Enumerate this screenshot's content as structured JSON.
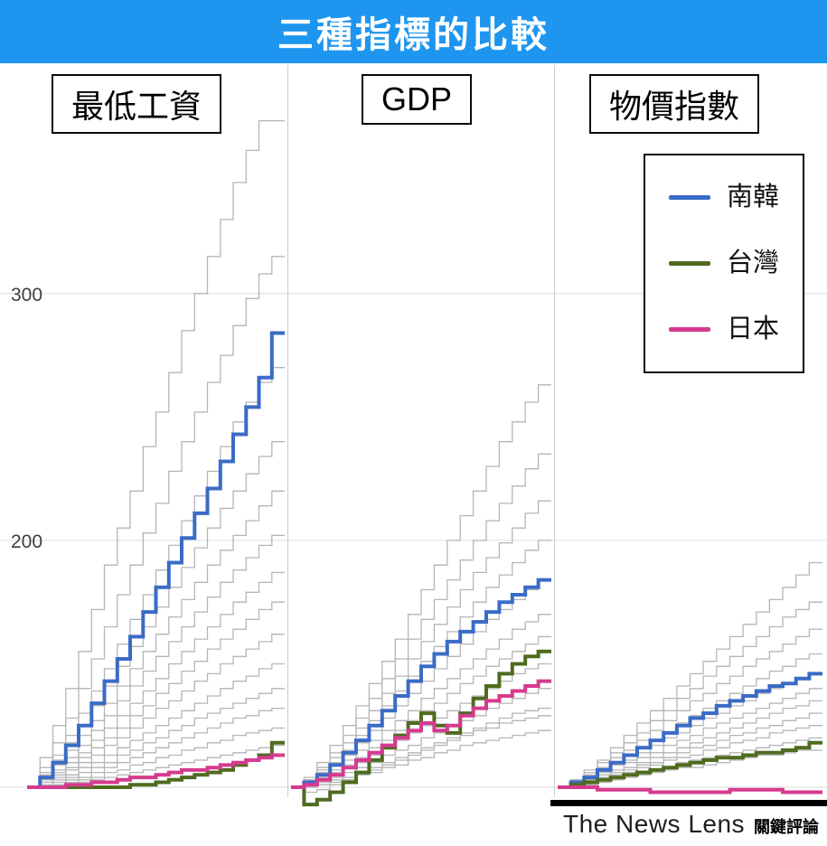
{
  "banner": {
    "title": "三種指標的比較",
    "bg_color": "#1e96ef",
    "text_color": "#ffffff"
  },
  "legend": {
    "items": [
      {
        "label": "南韓",
        "color": "#3a6bc6"
      },
      {
        "label": "台灣",
        "color": "#4e6b1f"
      },
      {
        "label": "日本",
        "color": "#d63a8f"
      }
    ]
  },
  "y_axis": {
    "ticks": [
      {
        "label": "300",
        "value": 300
      },
      {
        "label": "200",
        "value": 200
      }
    ],
    "baseline_value": 100
  },
  "footer": {
    "brand_en": "The News Lens",
    "brand_zh": "關鍵評論"
  },
  "chart_data": [
    {
      "type": "line",
      "step": true,
      "title": "最低工資",
      "ylim": [
        95,
        390
      ],
      "grid": true,
      "x_axis_labels": [],
      "background_color": "#b5b5b5",
      "series": [
        {
          "name": "南韓",
          "color": "#3a6bc6",
          "values": [
            100,
            104,
            110,
            117,
            125,
            134,
            143,
            152,
            161,
            171,
            181,
            191,
            201,
            211,
            221,
            232,
            243,
            254,
            266,
            284
          ]
        },
        {
          "name": "台灣",
          "color": "#4e6b1f",
          "values": [
            100,
            100,
            100,
            100,
            100,
            100,
            100,
            100,
            101,
            101,
            102,
            103,
            104,
            105,
            106,
            107,
            109,
            111,
            113,
            118
          ]
        },
        {
          "name": "日本",
          "color": "#d63a8f",
          "values": [
            100,
            100,
            100,
            101,
            101,
            102,
            102,
            103,
            104,
            104,
            105,
            106,
            107,
            107,
            108,
            109,
            110,
            111,
            112,
            113
          ]
        }
      ],
      "background_series": [
        [
          100,
          112,
          125,
          140,
          155,
          172,
          190,
          205,
          220,
          238,
          252,
          268,
          285,
          300,
          315,
          330,
          345,
          358,
          370,
          370
        ],
        [
          100,
          108,
          118,
          128,
          140,
          152,
          165,
          178,
          190,
          203,
          215,
          228,
          240,
          252,
          264,
          275,
          287,
          298,
          308,
          315
        ],
        [
          100,
          106,
          113,
          121,
          130,
          139,
          148,
          158,
          168,
          178,
          188,
          198,
          208,
          218,
          228,
          238,
          248,
          256,
          264,
          270
        ],
        [
          100,
          105,
          111,
          118,
          125,
          133,
          141,
          149,
          157,
          165,
          173,
          181,
          189,
          197,
          205,
          213,
          220,
          227,
          234,
          240
        ],
        [
          100,
          104,
          109,
          115,
          121,
          127,
          134,
          141,
          148,
          155,
          162,
          169,
          176,
          183,
          190,
          196,
          202,
          208,
          214,
          220
        ],
        [
          100,
          103,
          107,
          112,
          117,
          123,
          129,
          135,
          141,
          147,
          153,
          159,
          165,
          171,
          177,
          183,
          188,
          193,
          198,
          202
        ],
        [
          100,
          103,
          106,
          110,
          114,
          119,
          124,
          129,
          134,
          139,
          144,
          150,
          155,
          160,
          165,
          170,
          175,
          179,
          183,
          187
        ],
        [
          100,
          102,
          105,
          108,
          112,
          116,
          120,
          124,
          129,
          133,
          138,
          142,
          147,
          151,
          156,
          160,
          164,
          168,
          172,
          175
        ],
        [
          100,
          102,
          104,
          107,
          110,
          113,
          117,
          120,
          124,
          128,
          132,
          135,
          139,
          143,
          146,
          150,
          153,
          156,
          159,
          162
        ],
        [
          100,
          101,
          103,
          105,
          108,
          110,
          113,
          116,
          119,
          122,
          125,
          128,
          131,
          134,
          137,
          140,
          143,
          145,
          148,
          150
        ],
        [
          100,
          101,
          102,
          104,
          106,
          108,
          110,
          113,
          115,
          118,
          120,
          123,
          125,
          128,
          130,
          132,
          134,
          136,
          138,
          140
        ],
        [
          100,
          100,
          101,
          103,
          104,
          106,
          108,
          110,
          112,
          114,
          116,
          118,
          120,
          122,
          124,
          126,
          128,
          129,
          131,
          132
        ],
        [
          100,
          100,
          101,
          102,
          103,
          104,
          106,
          107,
          109,
          110,
          112,
          113,
          115,
          116,
          118,
          119,
          121,
          122,
          123,
          124
        ],
        [
          100,
          100,
          100,
          101,
          102,
          103,
          104,
          105,
          106,
          107,
          108,
          109,
          110,
          111,
          112,
          113,
          114,
          115,
          116,
          117
        ]
      ]
    },
    {
      "type": "line",
      "step": true,
      "title": "GDP",
      "ylim": [
        90,
        390
      ],
      "grid": true,
      "x_axis_labels": [],
      "background_color": "#b5b5b5",
      "series": [
        {
          "name": "南韓",
          "color": "#3a6bc6",
          "values": [
            100,
            102,
            105,
            109,
            114,
            119,
            125,
            131,
            137,
            143,
            149,
            154,
            159,
            163,
            167,
            171,
            175,
            178,
            181,
            184
          ]
        },
        {
          "name": "台灣",
          "color": "#4e6b1f",
          "values": [
            100,
            93,
            95,
            98,
            102,
            106,
            111,
            116,
            121,
            126,
            130,
            125,
            122,
            130,
            136,
            141,
            146,
            150,
            153,
            155
          ]
        },
        {
          "name": "日本",
          "color": "#d63a8f",
          "values": [
            100,
            101,
            103,
            105,
            108,
            111,
            114,
            117,
            120,
            123,
            126,
            123,
            125,
            129,
            132,
            135,
            137,
            139,
            141,
            143
          ]
        }
      ],
      "background_series": [
        [
          100,
          104,
          110,
          117,
          125,
          133,
          142,
          151,
          160,
          170,
          180,
          190,
          200,
          210,
          220,
          230,
          240,
          248,
          256,
          263
        ],
        [
          100,
          103,
          108,
          114,
          121,
          128,
          136,
          144,
          152,
          160,
          168,
          176,
          184,
          192,
          200,
          208,
          215,
          222,
          229,
          235
        ],
        [
          100,
          103,
          107,
          112,
          118,
          124,
          131,
          138,
          145,
          152,
          159,
          166,
          173,
          180,
          187,
          193,
          199,
          205,
          211,
          216
        ],
        [
          100,
          102,
          106,
          110,
          115,
          121,
          127,
          133,
          139,
          145,
          151,
          157,
          163,
          169,
          175,
          181,
          186,
          191,
          196,
          200
        ],
        [
          100,
          102,
          105,
          109,
          113,
          118,
          123,
          128,
          133,
          138,
          143,
          148,
          153,
          158,
          163,
          168,
          172,
          176,
          180,
          184
        ],
        [
          100,
          102,
          104,
          107,
          111,
          115,
          119,
          123,
          127,
          131,
          136,
          140,
          144,
          148,
          152,
          156,
          160,
          164,
          167,
          170
        ],
        [
          100,
          101,
          103,
          106,
          109,
          112,
          116,
          119,
          123,
          127,
          131,
          134,
          138,
          142,
          145,
          149,
          152,
          155,
          158,
          161
        ],
        [
          100,
          101,
          103,
          105,
          108,
          110,
          113,
          116,
          119,
          122,
          125,
          128,
          131,
          134,
          137,
          140,
          143,
          146,
          148,
          150
        ],
        [
          100,
          101,
          102,
          104,
          106,
          108,
          110,
          113,
          115,
          117,
          120,
          122,
          125,
          127,
          129,
          132,
          134,
          136,
          138,
          140
        ],
        [
          100,
          100,
          101,
          103,
          104,
          106,
          108,
          110,
          112,
          114,
          116,
          118,
          120,
          122,
          124,
          126,
          128,
          130,
          131,
          132
        ],
        [
          100,
          98,
          99,
          101,
          103,
          105,
          107,
          109,
          111,
          113,
          115,
          117,
          119,
          121,
          123,
          124,
          126,
          127,
          128,
          129
        ],
        [
          100,
          100,
          101,
          102,
          103,
          105,
          106,
          108,
          109,
          111,
          112,
          114,
          115,
          117,
          118,
          119,
          120,
          121,
          122,
          123
        ]
      ]
    },
    {
      "type": "line",
      "step": true,
      "title": "物價指數",
      "ylim": [
        95,
        390
      ],
      "grid": true,
      "x_axis_labels": [],
      "background_color": "#b5b5b5",
      "series": [
        {
          "name": "南韓",
          "color": "#3a6bc6",
          "values": [
            100,
            102,
            104,
            107,
            110,
            113,
            116,
            119,
            122,
            125,
            128,
            130,
            133,
            135,
            137,
            139,
            141,
            142,
            144,
            146
          ]
        },
        {
          "name": "台灣",
          "color": "#4e6b1f",
          "values": [
            100,
            101,
            102,
            103,
            104,
            105,
            106,
            107,
            108,
            109,
            110,
            111,
            112,
            112,
            113,
            114,
            114,
            115,
            116,
            118
          ]
        },
        {
          "name": "日本",
          "color": "#d63a8f",
          "values": [
            100,
            100,
            100,
            99,
            99,
            99,
            99,
            98,
            98,
            98,
            98,
            98,
            98,
            99,
            99,
            99,
            99,
            98,
            98,
            98
          ]
        }
      ],
      "background_series": [
        [
          100,
          103,
          107,
          111,
          116,
          121,
          126,
          131,
          136,
          141,
          146,
          151,
          156,
          161,
          166,
          171,
          176,
          181,
          186,
          191
        ],
        [
          100,
          103,
          106,
          110,
          114,
          118,
          122,
          127,
          131,
          136,
          140,
          145,
          149,
          153,
          157,
          161,
          165,
          169,
          172,
          175
        ],
        [
          100,
          102,
          105,
          108,
          112,
          115,
          119,
          123,
          127,
          131,
          135,
          138,
          142,
          145,
          149,
          152,
          155,
          158,
          161,
          164
        ],
        [
          100,
          102,
          104,
          107,
          110,
          113,
          116,
          119,
          122,
          126,
          129,
          132,
          135,
          138,
          141,
          144,
          147,
          149,
          152,
          154
        ],
        [
          100,
          102,
          104,
          106,
          109,
          111,
          114,
          117,
          120,
          122,
          125,
          128,
          130,
          133,
          135,
          138,
          140,
          142,
          144,
          146
        ],
        [
          100,
          101,
          103,
          105,
          107,
          110,
          112,
          114,
          117,
          119,
          121,
          124,
          126,
          128,
          130,
          132,
          134,
          136,
          138,
          140
        ],
        [
          100,
          101,
          103,
          104,
          106,
          108,
          110,
          112,
          114,
          116,
          118,
          120,
          122,
          124,
          126,
          128,
          130,
          132,
          133,
          135
        ],
        [
          100,
          101,
          102,
          104,
          105,
          107,
          109,
          110,
          112,
          114,
          116,
          117,
          119,
          121,
          122,
          124,
          125,
          127,
          128,
          130
        ],
        [
          100,
          101,
          102,
          103,
          105,
          106,
          108,
          109,
          111,
          112,
          113,
          115,
          116,
          118,
          119,
          120,
          122,
          123,
          124,
          125
        ],
        [
          100,
          100,
          101,
          102,
          103,
          105,
          106,
          107,
          108,
          110,
          111,
          112,
          113,
          114,
          115,
          116,
          117,
          118,
          119,
          120
        ],
        [
          100,
          100,
          101,
          102,
          103,
          104,
          105,
          106,
          107,
          108,
          108,
          109,
          110,
          111,
          112,
          113,
          113,
          114,
          115,
          115
        ]
      ]
    }
  ]
}
